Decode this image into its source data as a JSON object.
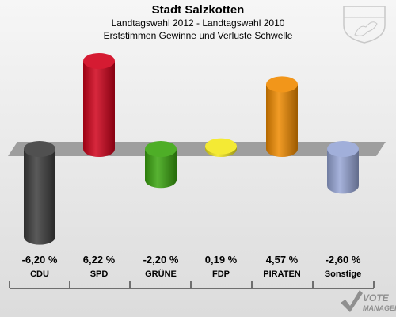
{
  "header": {
    "title": "Stadt Salzkotten",
    "subtitle": "Landtagswahl 2012 - Landtagswahl 2010",
    "subtitle2": "Erststimmen Gewinne und Verluste Schwelle"
  },
  "chart_data": {
    "type": "bar",
    "title": "Stadt Salzkotten",
    "subtitle": "Landtagswahl 2012 - Landtagswahl 2010 / Erststimmen Gewinne und Verluste Schwelle",
    "categories": [
      "CDU",
      "SPD",
      "GRÜNE",
      "FDP",
      "PIRATEN",
      "Sonstige"
    ],
    "values": [
      -6.2,
      6.22,
      -2.2,
      0.19,
      4.57,
      -2.6
    ],
    "value_labels": [
      "-6,20 %",
      "6,22 %",
      "-2,20 %",
      "0,19 %",
      "4,57 %",
      "-2,60 %"
    ],
    "colors": [
      "#3d3d3d",
      "#d0021b",
      "#3aa50f",
      "#f3e81d",
      "#f08a00",
      "#97a6d6"
    ],
    "ylim": [
      -7,
      7
    ],
    "baseline": 0
  },
  "branding": {
    "logo_line1": "VOTE",
    "logo_line2": "MANAGER"
  }
}
